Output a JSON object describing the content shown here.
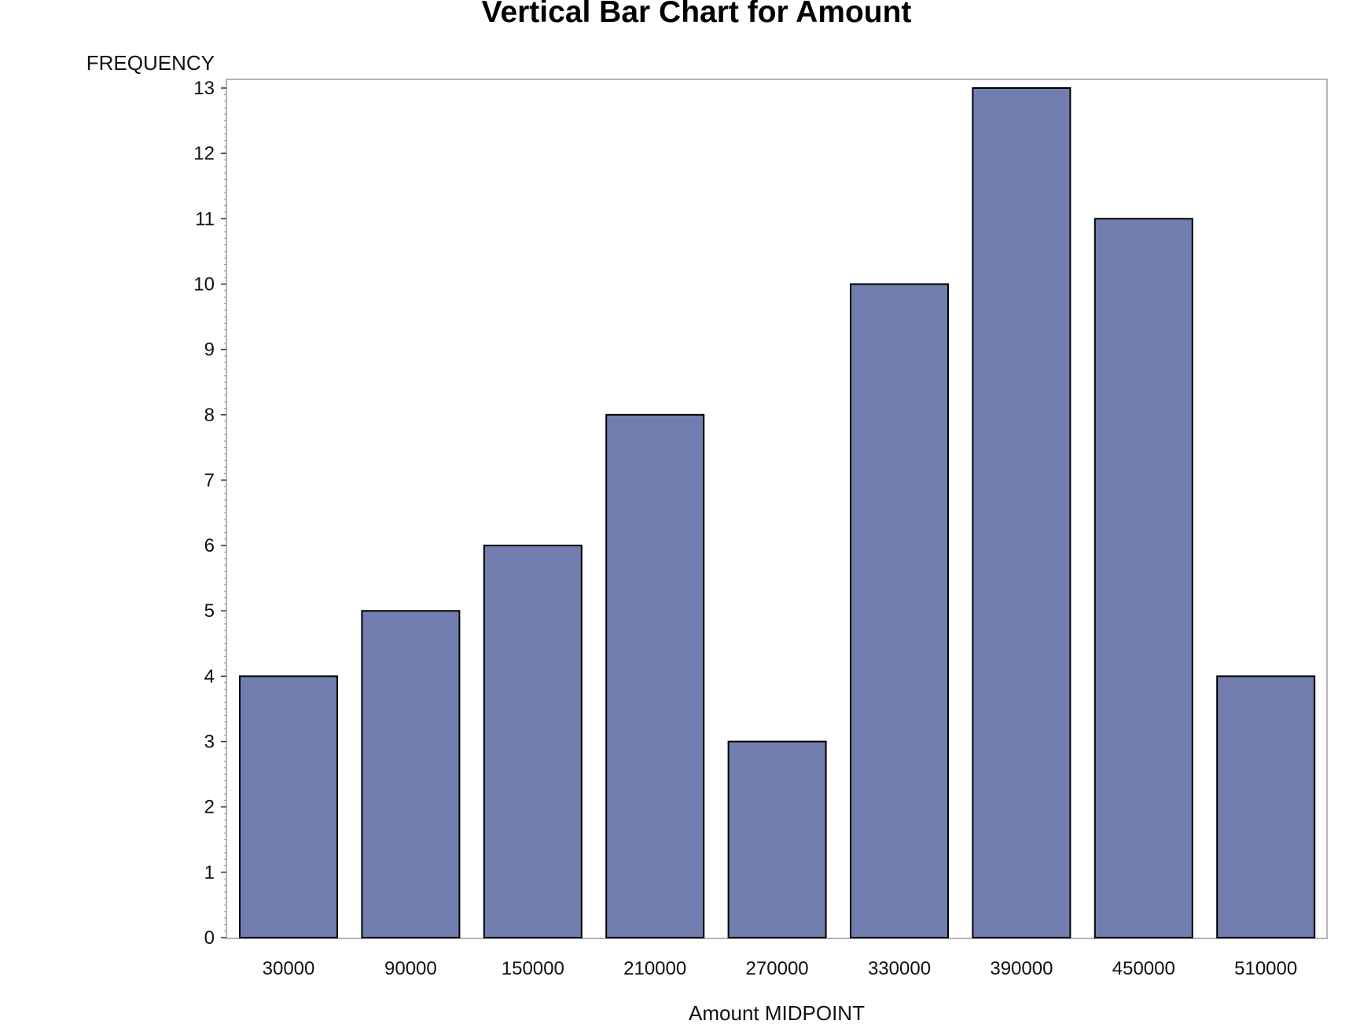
{
  "chart_data": {
    "type": "bar",
    "title": "Vertical Bar Chart for Amount",
    "xlabel": "Amount MIDPOINT",
    "ylabel": "FREQUENCY",
    "categories": [
      "30000",
      "90000",
      "150000",
      "210000",
      "270000",
      "330000",
      "390000",
      "450000",
      "510000"
    ],
    "values": [
      4,
      5,
      6,
      8,
      3,
      10,
      13,
      11,
      4
    ],
    "ylim": [
      0,
      13
    ],
    "yticks": [
      "0",
      "1",
      "2",
      "3",
      "4",
      "5",
      "6",
      "7",
      "8",
      "9",
      "10",
      "11",
      "12",
      "13"
    ],
    "grid": false,
    "colors": {
      "bar": "#717eaf",
      "bar_border": "#000000",
      "frame": "#b5b5b5"
    }
  }
}
